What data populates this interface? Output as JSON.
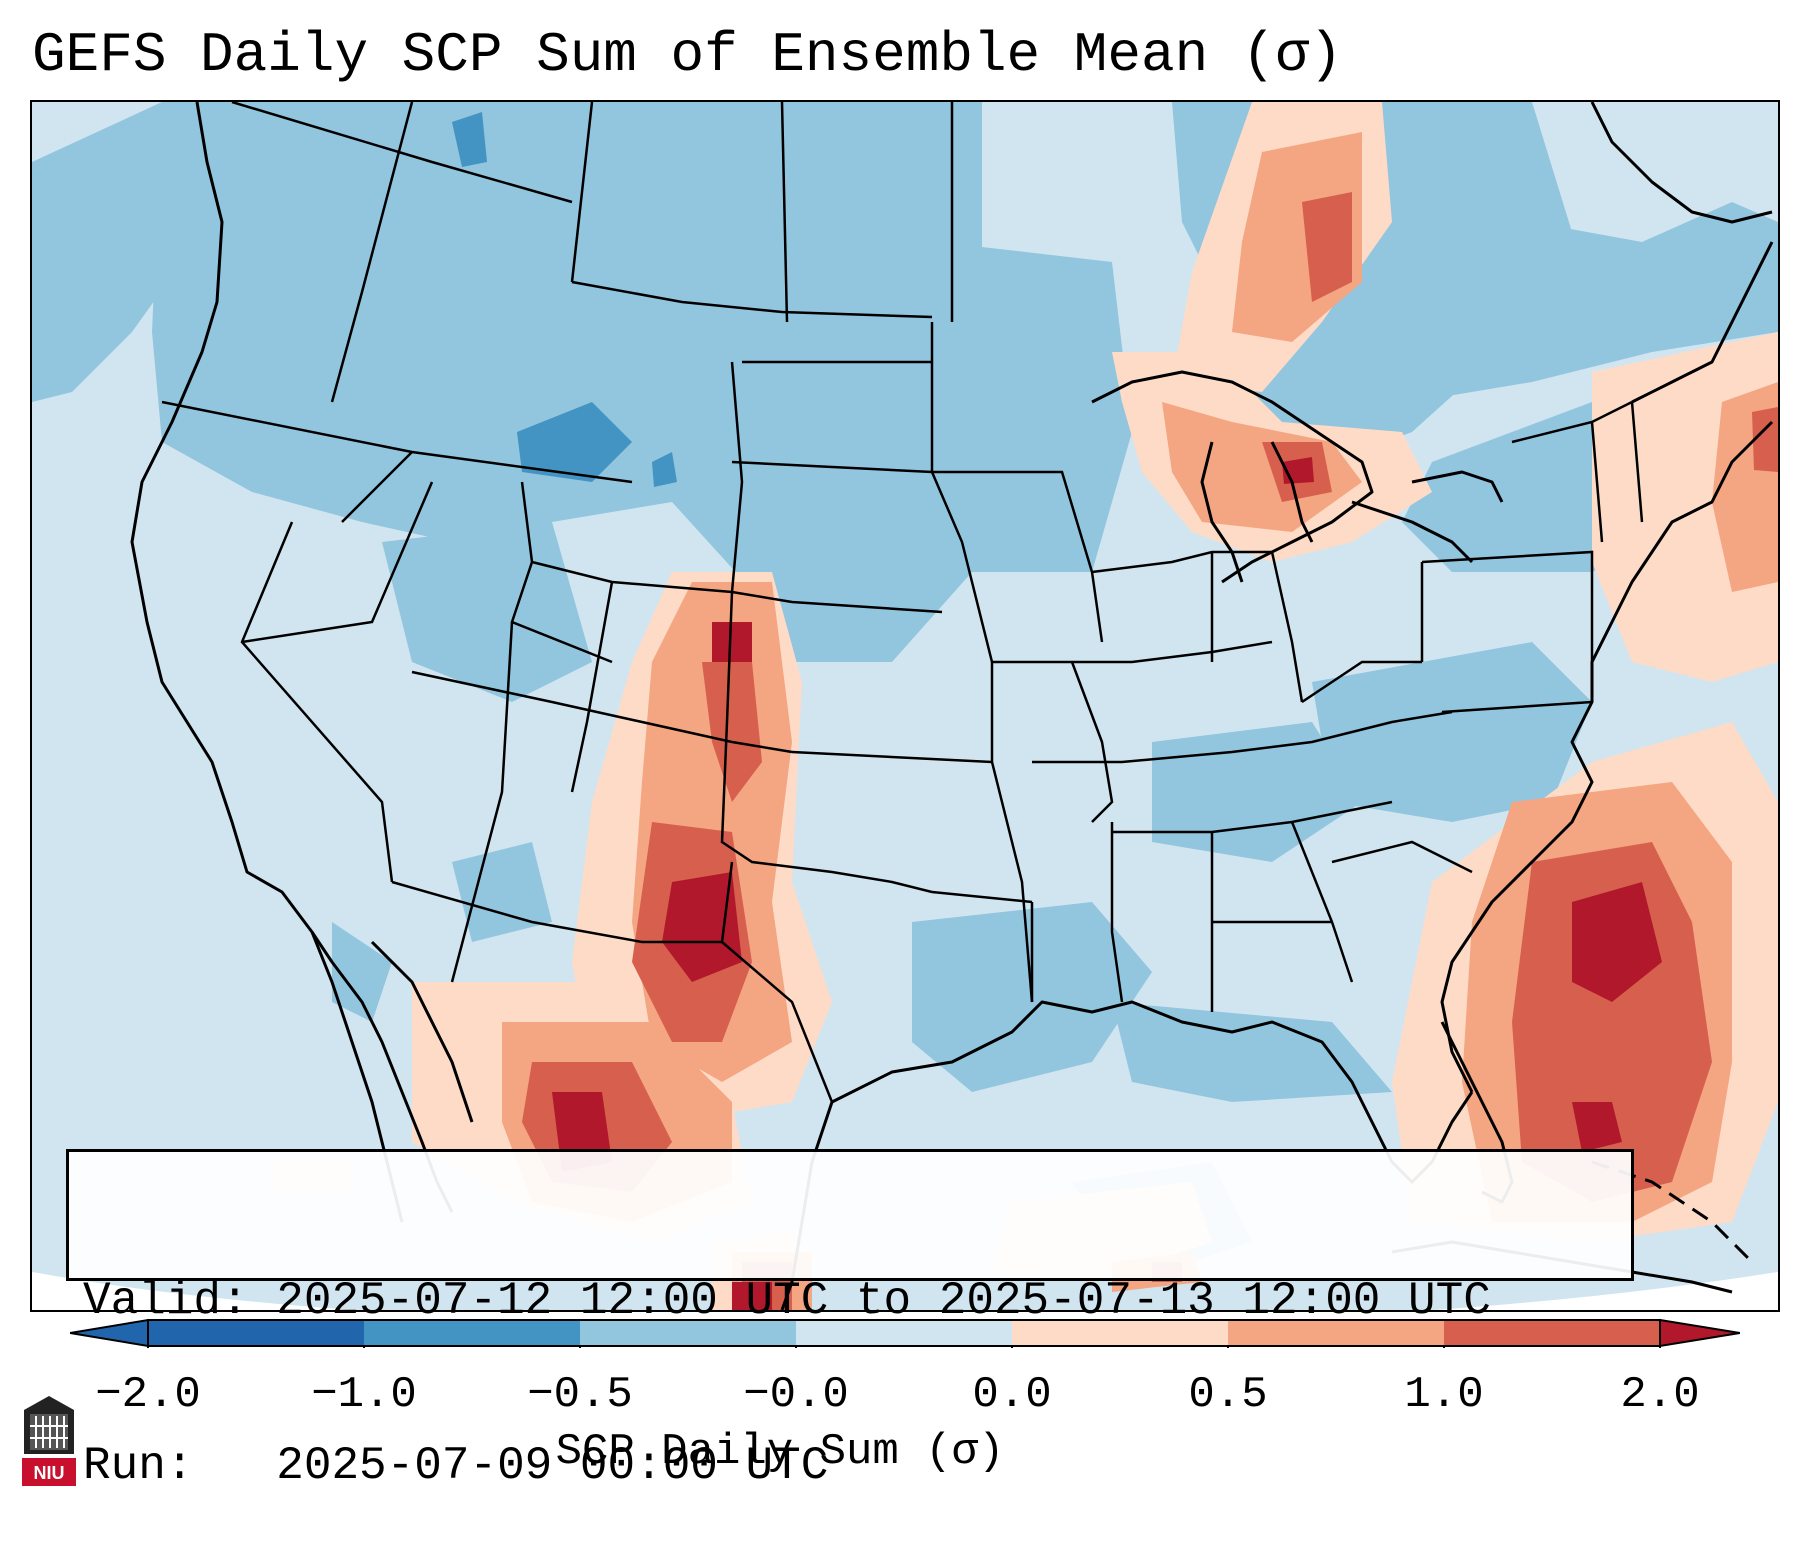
{
  "title": "GEFS Daily SCP Sum of Ensemble Mean (σ)",
  "map": {
    "region": "Continental United States",
    "field": "SCP daily sum anomaly"
  },
  "info_box": {
    "valid_line": "Valid: 2025-07-12 12:00 UTC to 2025-07-13 12:00 UTC",
    "run_line": "Run:   2025-07-09 00:00 UTC"
  },
  "colorbar": {
    "label": "SCP Daily Sum (σ)",
    "tick_labels": [
      "−2.0",
      "−1.0",
      "−0.5",
      "−0.0",
      "0.0",
      "0.5",
      "1.0",
      "2.0"
    ],
    "bins": [
      {
        "color": "#2166ac"
      },
      {
        "color": "#4393c3"
      },
      {
        "color": "#92c5de"
      },
      {
        "color": "#d1e5f0"
      },
      {
        "color": "#fddbc7"
      },
      {
        "color": "#f4a582"
      },
      {
        "color": "#d6604d"
      },
      {
        "color": "#b2182b"
      }
    ]
  },
  "logo": {
    "text": "NIU",
    "accent_color": "#c8102e"
  }
}
